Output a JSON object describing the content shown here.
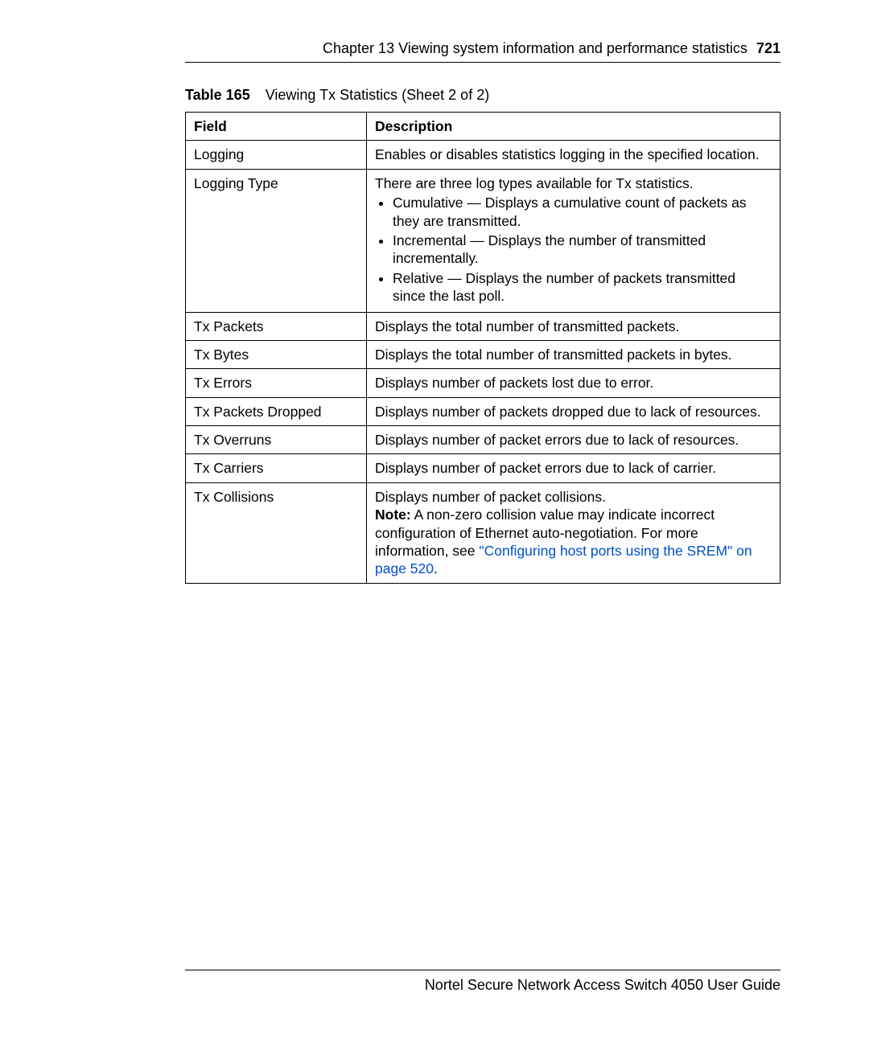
{
  "header": {
    "chapter": "Chapter 13  Viewing system information and performance statistics",
    "page_number": "721"
  },
  "table_caption": {
    "label": "Table 165",
    "title": "Viewing Tx Statistics (Sheet 2 of 2)"
  },
  "columns": {
    "field": "Field",
    "description": "Description"
  },
  "rows": {
    "logging": {
      "field": "Logging",
      "desc": "Enables or disables statistics logging in the specified location."
    },
    "logging_type": {
      "field": "Logging Type",
      "intro": "There are three log types available for Tx statistics.",
      "b1": "Cumulative — Displays a cumulative count of packets as they are transmitted.",
      "b2": "Incremental — Displays the number of transmitted incrementally.",
      "b3": "Relative — Displays the number of packets transmitted since the last poll."
    },
    "tx_packets": {
      "field": "Tx Packets",
      "desc": "Displays the total number of transmitted packets."
    },
    "tx_bytes": {
      "field": "Tx Bytes",
      "desc": "Displays the total number of transmitted packets in bytes."
    },
    "tx_errors": {
      "field": "Tx Errors",
      "desc": "Displays number of packets lost due to error."
    },
    "tx_dropped": {
      "field": "Tx Packets Dropped",
      "desc": "Displays number of packets dropped due to lack of resources."
    },
    "tx_overruns": {
      "field": "Tx Overruns",
      "desc": "Displays number of packet errors due to lack of resources."
    },
    "tx_carriers": {
      "field": "Tx Carriers",
      "desc": "Displays number of packet errors due to lack of carrier."
    },
    "tx_collisions": {
      "field": "Tx Collisions",
      "line1": "Displays number of packet collisions.",
      "note_label": "Note:",
      "note_a": " A non-zero collision value may indicate incorrect configuration of Ethernet auto-negotiation. For more information, see ",
      "link": "\"Configuring host ports using the SREM\" on page 520",
      "note_b": "."
    }
  },
  "footer": "Nortel Secure Network Access Switch 4050 User Guide"
}
